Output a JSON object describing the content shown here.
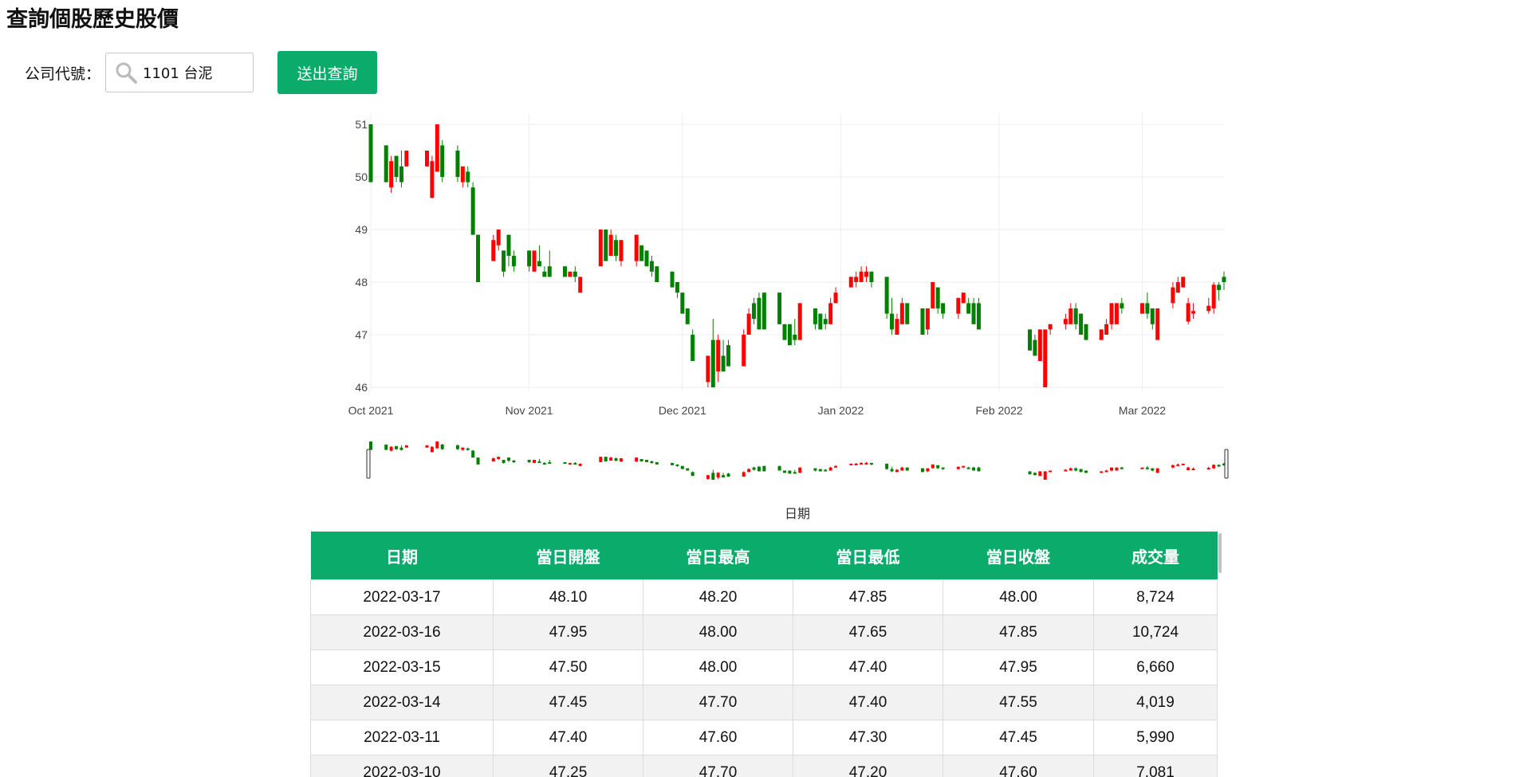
{
  "page": {
    "title": "查詢個股歷史股價"
  },
  "query": {
    "label": "公司代號：",
    "input_value": "1101 台泥",
    "submit_label": "送出查詢"
  },
  "colors": {
    "accent": "#0bab6b",
    "up": "#ff0000",
    "down": "#008000"
  },
  "chart_data": {
    "type": "candlestick",
    "x_range": [
      "2021-10-01",
      "2022-03-17"
    ],
    "y_range": [
      46,
      51
    ],
    "ytick_labels": [
      "46",
      "47",
      "48",
      "49",
      "50",
      "51"
    ],
    "xtick_labels": [
      "Oct 2021",
      "Nov 2021",
      "Dec 2021",
      "Jan 2022",
      "Feb 2022",
      "Mar 2022"
    ],
    "xtick_dates": [
      "2021-10-01",
      "2021-11-01",
      "2021-12-01",
      "2022-01-01",
      "2022-02-01",
      "2022-03-01"
    ],
    "xlabel": "日期",
    "rangeslider": true,
    "grid": true,
    "up_color": "#ff0000",
    "down_color": "#008000",
    "candles": [
      {
        "date": "2021-10-01",
        "open": 51.0,
        "high": 51.0,
        "low": 49.9,
        "close": 49.9
      },
      {
        "date": "2021-10-04",
        "open": 50.6,
        "high": 50.6,
        "low": 49.9,
        "close": 49.9
      },
      {
        "date": "2021-10-05",
        "open": 49.8,
        "high": 50.4,
        "low": 49.7,
        "close": 50.3
      },
      {
        "date": "2021-10-06",
        "open": 50.4,
        "high": 50.4,
        "low": 49.9,
        "close": 50.0
      },
      {
        "date": "2021-10-07",
        "open": 50.2,
        "high": 50.5,
        "low": 49.8,
        "close": 49.9
      },
      {
        "date": "2021-10-08",
        "open": 50.2,
        "high": 50.5,
        "low": 50.2,
        "close": 50.5
      },
      {
        "date": "2021-10-12",
        "open": 50.2,
        "high": 50.5,
        "low": 50.2,
        "close": 50.5
      },
      {
        "date": "2021-10-13",
        "open": 49.6,
        "high": 50.4,
        "low": 49.6,
        "close": 50.3
      },
      {
        "date": "2021-10-14",
        "open": 50.1,
        "high": 51.0,
        "low": 50.1,
        "close": 51.0
      },
      {
        "date": "2021-10-15",
        "open": 50.6,
        "high": 50.7,
        "low": 49.9,
        "close": 50.0
      },
      {
        "date": "2021-10-18",
        "open": 50.5,
        "high": 50.6,
        "low": 49.9,
        "close": 50.0
      },
      {
        "date": "2021-10-19",
        "open": 49.9,
        "high": 50.2,
        "low": 49.8,
        "close": 50.2
      },
      {
        "date": "2021-10-20",
        "open": 50.1,
        "high": 50.2,
        "low": 49.8,
        "close": 49.9
      },
      {
        "date": "2021-10-21",
        "open": 49.8,
        "high": 49.9,
        "low": 48.9,
        "close": 48.9
      },
      {
        "date": "2021-10-22",
        "open": 48.9,
        "high": 48.9,
        "low": 48.0,
        "close": 48.0
      },
      {
        "date": "2021-10-25",
        "open": 48.4,
        "high": 48.9,
        "low": 48.4,
        "close": 48.8
      },
      {
        "date": "2021-10-26",
        "open": 48.7,
        "high": 49.0,
        "low": 48.6,
        "close": 49.0
      },
      {
        "date": "2021-10-27",
        "open": 48.6,
        "high": 48.6,
        "low": 48.1,
        "close": 48.2
      },
      {
        "date": "2021-10-28",
        "open": 48.9,
        "high": 48.9,
        "low": 48.3,
        "close": 48.5
      },
      {
        "date": "2021-10-29",
        "open": 48.5,
        "high": 48.6,
        "low": 48.2,
        "close": 48.3
      },
      {
        "date": "2021-11-01",
        "open": 48.6,
        "high": 48.6,
        "low": 48.2,
        "close": 48.3
      },
      {
        "date": "2021-11-02",
        "open": 48.2,
        "high": 48.6,
        "low": 48.2,
        "close": 48.6
      },
      {
        "date": "2021-11-03",
        "open": 48.4,
        "high": 48.7,
        "low": 48.3,
        "close": 48.3
      },
      {
        "date": "2021-11-04",
        "open": 48.2,
        "high": 48.3,
        "low": 48.1,
        "close": 48.1
      },
      {
        "date": "2021-11-05",
        "open": 48.3,
        "high": 48.6,
        "low": 48.1,
        "close": 48.1
      },
      {
        "date": "2021-11-08",
        "open": 48.3,
        "high": 48.3,
        "low": 48.1,
        "close": 48.1
      },
      {
        "date": "2021-11-09",
        "open": 48.1,
        "high": 48.2,
        "low": 48.1,
        "close": 48.2
      },
      {
        "date": "2021-11-10",
        "open": 48.2,
        "high": 48.3,
        "low": 48.0,
        "close": 48.1
      },
      {
        "date": "2021-11-11",
        "open": 47.8,
        "high": 48.1,
        "low": 47.8,
        "close": 48.1
      },
      {
        "date": "2021-11-15",
        "open": 48.3,
        "high": 49.0,
        "low": 48.3,
        "close": 49.0
      },
      {
        "date": "2021-11-16",
        "open": 49.0,
        "high": 49.0,
        "low": 48.4,
        "close": 48.4
      },
      {
        "date": "2021-11-17",
        "open": 48.5,
        "high": 49.0,
        "low": 48.5,
        "close": 48.9
      },
      {
        "date": "2021-11-18",
        "open": 48.8,
        "high": 48.9,
        "low": 48.4,
        "close": 48.5
      },
      {
        "date": "2021-11-19",
        "open": 48.4,
        "high": 48.8,
        "low": 48.3,
        "close": 48.8
      },
      {
        "date": "2021-11-22",
        "open": 48.4,
        "high": 48.9,
        "low": 48.3,
        "close": 48.9
      },
      {
        "date": "2021-11-23",
        "open": 48.7,
        "high": 48.7,
        "low": 48.4,
        "close": 48.4
      },
      {
        "date": "2021-11-24",
        "open": 48.6,
        "high": 48.6,
        "low": 48.3,
        "close": 48.3
      },
      {
        "date": "2021-11-25",
        "open": 48.4,
        "high": 48.5,
        "low": 48.1,
        "close": 48.2
      },
      {
        "date": "2021-11-26",
        "open": 48.3,
        "high": 48.3,
        "low": 48.0,
        "close": 48.0
      },
      {
        "date": "2021-11-29",
        "open": 48.2,
        "high": 48.2,
        "low": 47.9,
        "close": 47.9
      },
      {
        "date": "2021-11-30",
        "open": 48.0,
        "high": 48.0,
        "low": 47.7,
        "close": 47.8
      },
      {
        "date": "2021-12-01",
        "open": 47.8,
        "high": 47.8,
        "low": 47.4,
        "close": 47.4
      },
      {
        "date": "2021-12-02",
        "open": 47.5,
        "high": 47.5,
        "low": 47.2,
        "close": 47.2
      },
      {
        "date": "2021-12-03",
        "open": 47.0,
        "high": 47.1,
        "low": 46.5,
        "close": 46.5
      },
      {
        "date": "2021-12-06",
        "open": 46.1,
        "high": 46.6,
        "low": 46.0,
        "close": 46.6
      },
      {
        "date": "2021-12-07",
        "open": 46.9,
        "high": 47.3,
        "low": 46.0,
        "close": 46.0
      },
      {
        "date": "2021-12-08",
        "open": 46.3,
        "high": 47.0,
        "low": 46.1,
        "close": 46.9
      },
      {
        "date": "2021-12-09",
        "open": 46.6,
        "high": 46.9,
        "low": 46.3,
        "close": 46.3
      },
      {
        "date": "2021-12-10",
        "open": 46.8,
        "high": 46.9,
        "low": 46.4,
        "close": 46.4
      },
      {
        "date": "2021-12-13",
        "open": 46.4,
        "high": 47.1,
        "low": 46.4,
        "close": 47.0
      },
      {
        "date": "2021-12-14",
        "open": 47.0,
        "high": 47.5,
        "low": 47.0,
        "close": 47.4
      },
      {
        "date": "2021-12-15",
        "open": 47.6,
        "high": 47.7,
        "low": 47.2,
        "close": 47.3
      },
      {
        "date": "2021-12-16",
        "open": 47.7,
        "high": 47.8,
        "low": 47.1,
        "close": 47.1
      },
      {
        "date": "2021-12-17",
        "open": 47.8,
        "high": 47.8,
        "low": 47.1,
        "close": 47.1
      },
      {
        "date": "2021-12-20",
        "open": 47.8,
        "high": 47.8,
        "low": 47.2,
        "close": 47.2
      },
      {
        "date": "2021-12-21",
        "open": 47.2,
        "high": 47.2,
        "low": 46.9,
        "close": 46.9
      },
      {
        "date": "2021-12-22",
        "open": 47.2,
        "high": 47.2,
        "low": 46.8,
        "close": 46.8
      },
      {
        "date": "2021-12-23",
        "open": 47.0,
        "high": 47.3,
        "low": 46.8,
        "close": 46.9
      },
      {
        "date": "2021-12-24",
        "open": 46.9,
        "high": 47.6,
        "low": 46.9,
        "close": 47.6
      },
      {
        "date": "2021-12-27",
        "open": 47.5,
        "high": 47.5,
        "low": 47.1,
        "close": 47.2
      },
      {
        "date": "2021-12-28",
        "open": 47.4,
        "high": 47.4,
        "low": 47.1,
        "close": 47.1
      },
      {
        "date": "2021-12-29",
        "open": 47.3,
        "high": 47.4,
        "low": 47.1,
        "close": 47.2
      },
      {
        "date": "2021-12-30",
        "open": 47.2,
        "high": 47.7,
        "low": 47.2,
        "close": 47.6
      },
      {
        "date": "2021-12-31",
        "open": 47.6,
        "high": 47.9,
        "low": 47.6,
        "close": 47.8
      },
      {
        "date": "2022-01-03",
        "open": 47.9,
        "high": 48.1,
        "low": 47.9,
        "close": 48.1
      },
      {
        "date": "2022-01-04",
        "open": 48.0,
        "high": 48.2,
        "low": 47.9,
        "close": 48.1
      },
      {
        "date": "2022-01-05",
        "open": 48.0,
        "high": 48.3,
        "low": 48.0,
        "close": 48.2
      },
      {
        "date": "2022-01-06",
        "open": 48.1,
        "high": 48.3,
        "low": 48.0,
        "close": 48.2
      },
      {
        "date": "2022-01-07",
        "open": 48.2,
        "high": 48.2,
        "low": 47.9,
        "close": 48.0
      },
      {
        "date": "2022-01-10",
        "open": 48.1,
        "high": 48.1,
        "low": 47.3,
        "close": 47.4
      },
      {
        "date": "2022-01-11",
        "open": 47.4,
        "high": 47.7,
        "low": 47.0,
        "close": 47.1
      },
      {
        "date": "2022-01-12",
        "open": 47.0,
        "high": 47.4,
        "low": 47.0,
        "close": 47.3
      },
      {
        "date": "2022-01-13",
        "open": 47.2,
        "high": 47.7,
        "low": 47.2,
        "close": 47.6
      },
      {
        "date": "2022-01-14",
        "open": 47.6,
        "high": 47.6,
        "low": 47.2,
        "close": 47.2
      },
      {
        "date": "2022-01-17",
        "open": 47.5,
        "high": 47.5,
        "low": 47.0,
        "close": 47.0
      },
      {
        "date": "2022-01-18",
        "open": 47.1,
        "high": 47.5,
        "low": 47.0,
        "close": 47.5
      },
      {
        "date": "2022-01-19",
        "open": 47.5,
        "high": 48.0,
        "low": 47.5,
        "close": 48.0
      },
      {
        "date": "2022-01-20",
        "open": 47.9,
        "high": 47.9,
        "low": 47.4,
        "close": 47.5
      },
      {
        "date": "2022-01-21",
        "open": 47.6,
        "high": 47.6,
        "low": 47.3,
        "close": 47.4
      },
      {
        "date": "2022-01-24",
        "open": 47.4,
        "high": 47.7,
        "low": 47.3,
        "close": 47.7
      },
      {
        "date": "2022-01-25",
        "open": 47.6,
        "high": 47.8,
        "low": 47.6,
        "close": 47.8
      },
      {
        "date": "2022-01-26",
        "open": 47.6,
        "high": 47.7,
        "low": 47.4,
        "close": 47.4
      },
      {
        "date": "2022-01-27",
        "open": 47.6,
        "high": 47.7,
        "low": 47.2,
        "close": 47.2
      },
      {
        "date": "2022-01-28",
        "open": 47.6,
        "high": 47.7,
        "low": 47.1,
        "close": 47.1
      },
      {
        "date": "2022-02-07",
        "open": 47.1,
        "high": 47.1,
        "low": 46.7,
        "close": 46.7
      },
      {
        "date": "2022-02-08",
        "open": 46.9,
        "high": 47.0,
        "low": 46.6,
        "close": 46.6
      },
      {
        "date": "2022-02-09",
        "open": 46.5,
        "high": 47.1,
        "low": 46.5,
        "close": 47.1
      },
      {
        "date": "2022-02-10",
        "open": 46.0,
        "high": 47.1,
        "low": 46.0,
        "close": 47.1
      },
      {
        "date": "2022-02-11",
        "open": 47.1,
        "high": 47.2,
        "low": 47.0,
        "close": 47.2
      },
      {
        "date": "2022-02-14",
        "open": 47.2,
        "high": 47.4,
        "low": 47.1,
        "close": 47.3
      },
      {
        "date": "2022-02-15",
        "open": 47.2,
        "high": 47.6,
        "low": 47.2,
        "close": 47.5
      },
      {
        "date": "2022-02-16",
        "open": 47.5,
        "high": 47.6,
        "low": 47.1,
        "close": 47.2
      },
      {
        "date": "2022-02-17",
        "open": 47.4,
        "high": 47.4,
        "low": 47.0,
        "close": 47.0
      },
      {
        "date": "2022-02-18",
        "open": 47.2,
        "high": 47.2,
        "low": 46.9,
        "close": 46.9
      },
      {
        "date": "2022-02-21",
        "open": 46.9,
        "high": 47.1,
        "low": 46.9,
        "close": 47.1
      },
      {
        "date": "2022-02-22",
        "open": 47.0,
        "high": 47.3,
        "low": 47.0,
        "close": 47.2
      },
      {
        "date": "2022-02-23",
        "open": 47.2,
        "high": 47.6,
        "low": 47.1,
        "close": 47.6
      },
      {
        "date": "2022-02-24",
        "open": 47.2,
        "high": 47.6,
        "low": 47.2,
        "close": 47.6
      },
      {
        "date": "2022-02-25",
        "open": 47.6,
        "high": 47.7,
        "low": 47.4,
        "close": 47.5
      },
      {
        "date": "2022-03-01",
        "open": 47.4,
        "high": 47.6,
        "low": 47.4,
        "close": 47.6
      },
      {
        "date": "2022-03-02",
        "open": 47.6,
        "high": 47.8,
        "low": 47.3,
        "close": 47.4
      },
      {
        "date": "2022-03-03",
        "open": 47.5,
        "high": 47.5,
        "low": 47.1,
        "close": 47.2
      },
      {
        "date": "2022-03-04",
        "open": 46.9,
        "high": 47.5,
        "low": 46.9,
        "close": 47.5
      },
      {
        "date": "2022-03-07",
        "open": 47.6,
        "high": 48.0,
        "low": 47.5,
        "close": 47.9
      },
      {
        "date": "2022-03-08",
        "open": 47.8,
        "high": 48.1,
        "low": 47.8,
        "close": 48.0
      },
      {
        "date": "2022-03-09",
        "open": 47.9,
        "high": 48.1,
        "low": 47.9,
        "close": 48.1
      },
      {
        "date": "2022-03-10",
        "open": 47.25,
        "high": 47.7,
        "low": 47.2,
        "close": 47.6
      },
      {
        "date": "2022-03-11",
        "open": 47.4,
        "high": 47.6,
        "low": 47.3,
        "close": 47.45
      },
      {
        "date": "2022-03-14",
        "open": 47.45,
        "high": 47.7,
        "low": 47.4,
        "close": 47.55
      },
      {
        "date": "2022-03-15",
        "open": 47.5,
        "high": 48.0,
        "low": 47.4,
        "close": 47.95
      },
      {
        "date": "2022-03-16",
        "open": 47.95,
        "high": 48.0,
        "low": 47.65,
        "close": 47.85
      },
      {
        "date": "2022-03-17",
        "open": 48.1,
        "high": 48.2,
        "low": 47.85,
        "close": 48.0
      }
    ]
  },
  "table": {
    "headers": [
      "日期",
      "當日開盤",
      "當日最高",
      "當日最低",
      "當日收盤",
      "成交量"
    ],
    "rows": [
      [
        "2022-03-17",
        "48.10",
        "48.20",
        "47.85",
        "48.00",
        "8,724"
      ],
      [
        "2022-03-16",
        "47.95",
        "48.00",
        "47.65",
        "47.85",
        "10,724"
      ],
      [
        "2022-03-15",
        "47.50",
        "48.00",
        "47.40",
        "47.95",
        "6,660"
      ],
      [
        "2022-03-14",
        "47.45",
        "47.70",
        "47.40",
        "47.55",
        "4,019"
      ],
      [
        "2022-03-11",
        "47.40",
        "47.60",
        "47.30",
        "47.45",
        "5,990"
      ],
      [
        "2022-03-10",
        "47.25",
        "47.70",
        "47.20",
        "47.60",
        "7,081"
      ]
    ]
  }
}
